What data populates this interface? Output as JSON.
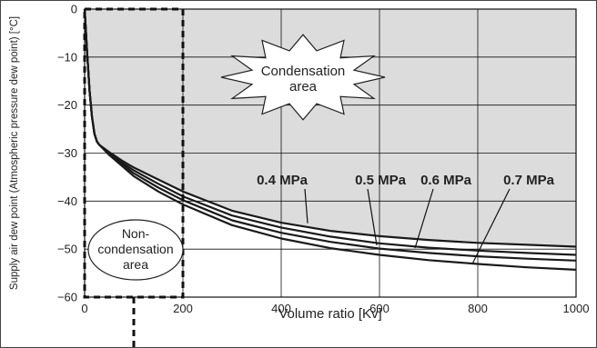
{
  "chart_data": {
    "type": "line",
    "xlabel": "Volume ratio [Kv]",
    "ylabel": "Supply air dew point (Atmospheric pressure dew point) [°C]",
    "xlim": [
      0,
      1000
    ],
    "ylim": [
      -60,
      0
    ],
    "xticks": [
      0,
      200,
      400,
      600,
      800,
      1000
    ],
    "yticks": [
      0,
      -10,
      -20,
      -30,
      -40,
      -50,
      -60
    ],
    "grid": true,
    "series": [
      {
        "name": "0.4 MPa",
        "x": [
          0,
          5,
          10,
          15,
          20,
          25,
          30,
          50,
          75,
          100,
          150,
          200,
          300,
          400,
          500,
          600,
          700,
          800,
          900,
          1000
        ],
        "y": [
          0,
          -9,
          -17,
          -22.5,
          -26,
          -27.6,
          -28.3,
          -29.8,
          -31.5,
          -33,
          -35.5,
          -38,
          -42,
          -44.5,
          -46.2,
          -47.3,
          -48.1,
          -48.7,
          -49.1,
          -49.5
        ]
      },
      {
        "name": "0.5 MPa",
        "x": [
          0,
          5,
          10,
          15,
          20,
          25,
          30,
          50,
          75,
          100,
          150,
          200,
          300,
          400,
          500,
          600,
          700,
          800,
          900,
          1000
        ],
        "y": [
          0,
          -9,
          -17,
          -22.5,
          -26,
          -27.6,
          -28.3,
          -30,
          -31.9,
          -33.6,
          -36.4,
          -39,
          -43,
          -45.5,
          -47.4,
          -48.8,
          -49.7,
          -50.3,
          -50.8,
          -51.2
        ]
      },
      {
        "name": "0.6 MPa",
        "x": [
          0,
          5,
          10,
          15,
          20,
          25,
          30,
          50,
          75,
          100,
          150,
          200,
          300,
          400,
          500,
          600,
          700,
          800,
          900,
          1000
        ],
        "y": [
          0,
          -9,
          -17,
          -22.5,
          -26,
          -27.6,
          -28.3,
          -30.2,
          -32.2,
          -34.2,
          -37.2,
          -39.8,
          -44,
          -46.6,
          -48.5,
          -49.9,
          -50.8,
          -51.5,
          -52,
          -52.4
        ]
      },
      {
        "name": "0.7 MPa",
        "x": [
          0,
          5,
          10,
          15,
          20,
          25,
          30,
          50,
          75,
          100,
          150,
          200,
          300,
          400,
          500,
          600,
          700,
          800,
          900,
          1000
        ],
        "y": [
          0,
          -9,
          -17,
          -22.5,
          -26,
          -27.6,
          -28.3,
          -30.4,
          -32.6,
          -34.8,
          -38,
          -40.7,
          -45,
          -47.8,
          -49.8,
          -51.2,
          -52.3,
          -53.1,
          -53.8,
          -54.3
        ]
      }
    ],
    "annotations": {
      "condensation_area": "Condensation\narea",
      "non_condensation_area": "Non-\ncondensation\narea"
    },
    "colors": {
      "condensation_fill": "#dcdcdc",
      "lines": "#1a1a1a",
      "grid": "#111111"
    }
  }
}
